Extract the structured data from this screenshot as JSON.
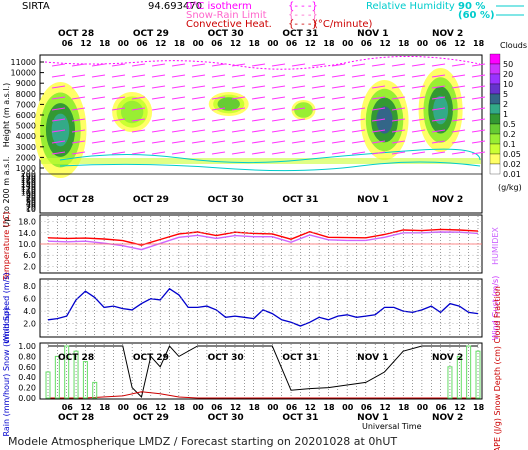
{
  "header": {
    "station": "SIRTA",
    "value": "94.693470",
    "legend_left": [
      {
        "label": "0°C isotherm",
        "color": "#ff00ff"
      },
      {
        "label": "Snow-Rain Limit",
        "color": "#ff66cc"
      },
      {
        "label": "Convective Heat.",
        "color": "#cc0000",
        "unit": "(°C/minute)"
      }
    ],
    "legend_right": [
      {
        "label": "Relative Humidity",
        "value": "90 %",
        "color": "#00cccc"
      },
      {
        "value": "(60 %)",
        "color": "#00cccc"
      }
    ]
  },
  "time_axis": {
    "days": [
      "OCT 28",
      "OCT 29",
      "OCT 30",
      "OCT 31",
      "NOV 1",
      "NOV 2"
    ],
    "hours": [
      "06",
      "12",
      "18",
      "00",
      "06",
      "12",
      "18",
      "00",
      "06",
      "12",
      "18",
      "00",
      "06",
      "12",
      "18",
      "00",
      "06",
      "12",
      "18",
      "00",
      "06",
      "12",
      "18"
    ],
    "xlabel": "Universal Time"
  },
  "footer": "Modele Atmospherique LMDZ / Forecast starting on 20201028 at 0hUT",
  "chart_data": [
    {
      "type": "heatmap",
      "title": "Clouds",
      "ylabel": "Height (m a.s.l.)",
      "ylabel2": "Up to 200 m a.s.l.",
      "yticks_upper": [
        1000,
        2000,
        3000,
        4000,
        5000,
        6000,
        7000,
        8000,
        9000,
        10000,
        11000
      ],
      "yticks_lower": [
        10,
        20,
        30,
        40,
        50,
        60,
        70,
        80,
        90,
        100,
        110,
        120,
        130,
        140,
        150,
        160,
        170,
        180,
        190,
        200
      ],
      "colorbar": {
        "label": "(g/kg)",
        "ticks": [
          0.01,
          0.02,
          0.05,
          0.1,
          0.2,
          0.5,
          1,
          2,
          5,
          10,
          20,
          50
        ],
        "colors": [
          "#ffffff",
          "#ffff66",
          "#ccff33",
          "#99ee33",
          "#66cc33",
          "#339933",
          "#33aa88",
          "#336688",
          "#6633cc",
          "#9933ff",
          "#cc33ff",
          "#ff00ff"
        ]
      }
    },
    {
      "type": "line",
      "ylabel": "Temperature (°C)",
      "ylabel_right": "HUMIDEX",
      "ylim": [
        0,
        20
      ],
      "yticks": [
        "18.0",
        "14.0",
        "10.0",
        "6.0",
        "2.0"
      ],
      "series": [
        {
          "color": "#ff0000",
          "x": [
            0,
            6,
            12,
            18,
            24,
            30,
            36,
            42,
            48,
            54,
            60,
            66,
            72,
            78,
            84,
            90,
            96,
            102,
            108,
            114,
            120,
            126,
            132,
            138
          ],
          "values": [
            12.2,
            12.0,
            12.1,
            11.8,
            11.2,
            9.6,
            11.6,
            13.6,
            14.3,
            13.0,
            14.2,
            13.8,
            13.6,
            11.7,
            14.4,
            12.4,
            12.3,
            12.2,
            13.4,
            15.0,
            14.8,
            15.2,
            15.0,
            14.6
          ]
        },
        {
          "color": "#cc66ff",
          "x": [
            0,
            6,
            12,
            18,
            24,
            30,
            36,
            42,
            48,
            54,
            60,
            66,
            72,
            78,
            84,
            90,
            96,
            102,
            108,
            114,
            120,
            126,
            132,
            138
          ],
          "values": [
            11.0,
            10.8,
            11.0,
            10.3,
            9.4,
            8.0,
            10.2,
            12.4,
            13.1,
            12.0,
            13.0,
            12.6,
            12.6,
            10.6,
            13.2,
            11.5,
            11.3,
            11.3,
            12.4,
            14.0,
            14.0,
            14.3,
            14.2,
            13.8
          ]
        }
      ]
    },
    {
      "type": "line",
      "ylabel": "Wind Speed (m/s)",
      "ylabel_right": "Wind Gust (m/s)",
      "yticks": [
        "8.0",
        "6.0",
        "4.0",
        "2.0"
      ],
      "ylim": [
        0,
        9
      ],
      "series": [
        {
          "color": "#0000cc",
          "x": [
            0,
            3,
            6,
            9,
            12,
            15,
            18,
            21,
            24,
            27,
            30,
            33,
            36,
            39,
            42,
            45,
            48,
            51,
            54,
            57,
            60,
            63,
            66,
            69,
            72,
            75,
            78,
            81,
            84,
            87,
            90,
            93,
            96,
            99,
            102,
            105,
            108,
            111,
            114,
            117,
            120,
            123,
            126,
            129,
            132,
            135,
            138
          ],
          "values": [
            2.6,
            2.8,
            3.2,
            5.8,
            7.2,
            6.2,
            4.6,
            4.8,
            4.4,
            4.2,
            5.2,
            6.0,
            5.8,
            7.6,
            6.6,
            4.6,
            4.6,
            4.8,
            4.2,
            3.0,
            3.2,
            3.0,
            2.8,
            4.2,
            3.6,
            2.6,
            2.2,
            1.6,
            2.2,
            3.0,
            2.6,
            3.2,
            3.4,
            3.0,
            3.2,
            3.4,
            4.6,
            4.6,
            4.0,
            3.8,
            4.2,
            4.8,
            3.8,
            5.2,
            4.8,
            3.8,
            3.6
          ]
        }
      ]
    },
    {
      "type": "line",
      "ylabel": "Rain (mm/hour) Snow (cm/hour)",
      "ylabel_right": "CAPE (J/g) Snow Depth (cm) Cloud Fraction",
      "yticks": [
        "1.00",
        "0.80",
        "0.60",
        "0.40",
        "0.20",
        "0.00"
      ],
      "ylim": [
        0,
        1
      ],
      "series": [
        {
          "color": "#000000",
          "x": [
            0,
            6,
            12,
            18,
            24,
            27,
            30,
            33,
            36,
            39,
            42,
            48,
            54,
            60,
            66,
            72,
            78,
            84,
            90,
            96,
            102,
            108,
            114,
            120,
            126,
            132,
            138
          ],
          "values": [
            1.0,
            1.0,
            1.0,
            1.0,
            1.0,
            0.2,
            0.02,
            0.8,
            0.6,
            1.0,
            0.8,
            1.0,
            1.0,
            1.0,
            1.0,
            1.0,
            0.15,
            0.18,
            0.2,
            0.25,
            0.3,
            0.5,
            0.9,
            1.0,
            1.0,
            1.0,
            1.0
          ]
        },
        {
          "color": "#cc0000",
          "x": [
            0,
            12,
            24,
            30,
            36,
            42,
            48,
            60,
            72,
            84,
            96,
            108,
            120,
            132,
            138
          ],
          "values": [
            0.0,
            0.0,
            0.04,
            0.12,
            0.08,
            0.02,
            0.0,
            0.0,
            0.0,
            0.0,
            0.0,
            0.0,
            0.0,
            0.0,
            0.0
          ]
        },
        {
          "color": "#66dd66",
          "type": "bars",
          "x": [
            0,
            3,
            6,
            9,
            12,
            15,
            129,
            132,
            135,
            138
          ],
          "values": [
            0.5,
            0.8,
            1.0,
            0.9,
            0.7,
            0.3,
            0.6,
            0.8,
            1.0,
            0.9
          ]
        }
      ]
    }
  ]
}
